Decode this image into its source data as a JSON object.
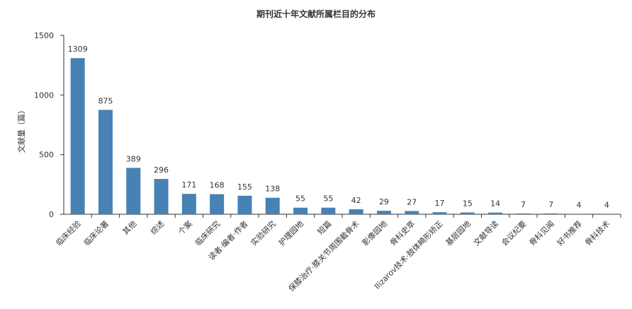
{
  "chart_data": {
    "type": "bar",
    "title": "期刊近十年文献所属栏目的分布",
    "ylabel": "文献量（篇）",
    "xlabel": "",
    "ylim": [
      0,
      1500
    ],
    "yticks": [
      0,
      500,
      1000,
      1500
    ],
    "grid": false,
    "legend": "none",
    "bar_color": "#4682b4",
    "categories": [
      "临床经验",
      "临床论著",
      "其他",
      "综述",
      "个案",
      "临床研究",
      "读者·编者·作者",
      "实验研究",
      "护理园地",
      "短篇",
      "保膝治疗·膝关节周围截骨术",
      "影像园地",
      "骨科史萃",
      "Ilizarov技术·肢体畸形矫正",
      "基层园地",
      "文献导读",
      "会议纪要",
      "骨科见闻",
      "好书推荐",
      "骨科技术"
    ],
    "values": [
      1309,
      875,
      389,
      296,
      171,
      168,
      155,
      138,
      55,
      55,
      42,
      29,
      27,
      17,
      15,
      14,
      7,
      7,
      4,
      4
    ]
  }
}
